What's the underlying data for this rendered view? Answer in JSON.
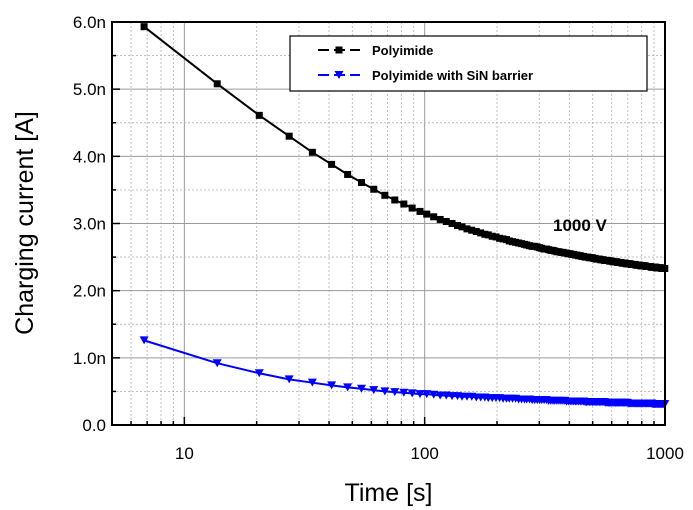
{
  "chart_data": {
    "type": "scatter",
    "title": "",
    "xlabel": "Time [s]",
    "ylabel": "Charging current [A]",
    "xscale": "log",
    "xlim": [
      5,
      1000
    ],
    "ylim": [
      0,
      6e-09
    ],
    "x_ticks": [
      {
        "value": 10,
        "label": "10"
      },
      {
        "value": 100,
        "label": "100"
      },
      {
        "value": 1000,
        "label": "1000"
      }
    ],
    "y_ticks": [
      {
        "value": 0,
        "label": "0.0"
      },
      {
        "value": 1e-09,
        "label": "1.0n"
      },
      {
        "value": 2e-09,
        "label": "2.0n"
      },
      {
        "value": 3e-09,
        "label": "3.0n"
      },
      {
        "value": 4e-09,
        "label": "4.0n"
      },
      {
        "value": 5e-09,
        "label": "5.0n"
      },
      {
        "value": 6e-09,
        "label": "6.0n"
      }
    ],
    "grid": true,
    "legend_position": "top-right",
    "annotation": "1000 V",
    "series": [
      {
        "name": "Polyimide",
        "color": "#000000",
        "marker": "square",
        "points": [
          [
            6.8,
            5.93e-09
          ],
          [
            13.7,
            5.08e-09
          ],
          [
            20.5,
            4.61e-09
          ],
          [
            27.3,
            4.3e-09
          ],
          [
            34.1,
            4.06e-09
          ],
          [
            41,
            3.88e-09
          ],
          [
            47.8,
            3.73e-09
          ],
          [
            54.6,
            3.61e-09
          ],
          [
            61.4,
            3.51e-09
          ],
          [
            68.3,
            3.42e-09
          ],
          [
            75.1,
            3.35e-09
          ],
          [
            81.9,
            3.29e-09
          ],
          [
            88.7,
            3.23e-09
          ],
          [
            95.6,
            3.18e-09
          ],
          [
            102,
            3.14e-09
          ],
          [
            109,
            3.1e-09
          ],
          [
            116,
            3.06e-09
          ],
          [
            123,
            3.03e-09
          ],
          [
            130,
            3e-09
          ],
          [
            137,
            2.97e-09
          ],
          [
            143,
            2.95e-09
          ],
          [
            150,
            2.92e-09
          ],
          [
            157,
            2.9e-09
          ],
          [
            164,
            2.88e-09
          ],
          [
            171,
            2.86e-09
          ],
          [
            178,
            2.84e-09
          ],
          [
            184,
            2.83e-09
          ],
          [
            191,
            2.81e-09
          ],
          [
            198,
            2.8e-09
          ],
          [
            205,
            2.78e-09
          ],
          [
            212,
            2.77e-09
          ],
          [
            219,
            2.76e-09
          ],
          [
            225,
            2.74e-09
          ],
          [
            232,
            2.73e-09
          ],
          [
            239,
            2.72e-09
          ],
          [
            246,
            2.71e-09
          ],
          [
            253,
            2.7e-09
          ],
          [
            260,
            2.69e-09
          ],
          [
            266,
            2.68e-09
          ],
          [
            273,
            2.67e-09
          ],
          [
            280,
            2.66e-09
          ],
          [
            287,
            2.66e-09
          ],
          [
            294,
            2.65e-09
          ],
          [
            301,
            2.64e-09
          ],
          [
            307,
            2.63e-09
          ],
          [
            314,
            2.62e-09
          ],
          [
            321,
            2.62e-09
          ],
          [
            328,
            2.61e-09
          ],
          [
            335,
            2.6e-09
          ],
          [
            342,
            2.6e-09
          ],
          [
            348,
            2.59e-09
          ],
          [
            355,
            2.58e-09
          ],
          [
            362,
            2.58e-09
          ],
          [
            369,
            2.57e-09
          ],
          [
            376,
            2.57e-09
          ],
          [
            383,
            2.56e-09
          ],
          [
            389,
            2.56e-09
          ],
          [
            396,
            2.55e-09
          ],
          [
            403,
            2.55e-09
          ],
          [
            410,
            2.54e-09
          ],
          [
            417,
            2.54e-09
          ],
          [
            424,
            2.53e-09
          ],
          [
            430,
            2.53e-09
          ],
          [
            437,
            2.52e-09
          ],
          [
            444,
            2.52e-09
          ],
          [
            451,
            2.51e-09
          ],
          [
            458,
            2.51e-09
          ],
          [
            465,
            2.5e-09
          ],
          [
            471,
            2.5e-09
          ],
          [
            478,
            2.5e-09
          ],
          [
            485,
            2.49e-09
          ],
          [
            492,
            2.49e-09
          ],
          [
            499,
            2.49e-09
          ],
          [
            506,
            2.48e-09
          ],
          [
            512,
            2.48e-09
          ],
          [
            519,
            2.47e-09
          ],
          [
            526,
            2.47e-09
          ],
          [
            533,
            2.47e-09
          ],
          [
            540,
            2.46e-09
          ],
          [
            547,
            2.46e-09
          ],
          [
            553,
            2.46e-09
          ],
          [
            560,
            2.45e-09
          ],
          [
            567,
            2.45e-09
          ],
          [
            574,
            2.45e-09
          ],
          [
            581,
            2.45e-09
          ],
          [
            588,
            2.44e-09
          ],
          [
            594,
            2.44e-09
          ],
          [
            601,
            2.44e-09
          ],
          [
            608,
            2.43e-09
          ],
          [
            615,
            2.43e-09
          ],
          [
            622,
            2.43e-09
          ],
          [
            629,
            2.43e-09
          ],
          [
            635,
            2.42e-09
          ],
          [
            642,
            2.42e-09
          ],
          [
            649,
            2.42e-09
          ],
          [
            656,
            2.42e-09
          ],
          [
            663,
            2.41e-09
          ],
          [
            670,
            2.41e-09
          ],
          [
            676,
            2.41e-09
          ],
          [
            683,
            2.41e-09
          ],
          [
            690,
            2.4e-09
          ],
          [
            697,
            2.4e-09
          ],
          [
            704,
            2.4e-09
          ],
          [
            711,
            2.4e-09
          ],
          [
            717,
            2.4e-09
          ],
          [
            724,
            2.39e-09
          ],
          [
            731,
            2.39e-09
          ],
          [
            738,
            2.39e-09
          ],
          [
            745,
            2.39e-09
          ],
          [
            752,
            2.39e-09
          ],
          [
            758,
            2.38e-09
          ],
          [
            765,
            2.38e-09
          ],
          [
            772,
            2.38e-09
          ],
          [
            779,
            2.38e-09
          ],
          [
            786,
            2.38e-09
          ],
          [
            793,
            2.37e-09
          ],
          [
            799,
            2.37e-09
          ],
          [
            806,
            2.37e-09
          ],
          [
            813,
            2.37e-09
          ],
          [
            820,
            2.37e-09
          ],
          [
            827,
            2.37e-09
          ],
          [
            834,
            2.36e-09
          ],
          [
            840,
            2.36e-09
          ],
          [
            847,
            2.36e-09
          ],
          [
            854,
            2.36e-09
          ],
          [
            861,
            2.36e-09
          ],
          [
            868,
            2.36e-09
          ],
          [
            875,
            2.35e-09
          ],
          [
            881,
            2.35e-09
          ],
          [
            888,
            2.35e-09
          ],
          [
            895,
            2.35e-09
          ],
          [
            902,
            2.35e-09
          ],
          [
            909,
            2.35e-09
          ],
          [
            916,
            2.35e-09
          ],
          [
            922,
            2.34e-09
          ],
          [
            929,
            2.34e-09
          ],
          [
            936,
            2.34e-09
          ],
          [
            943,
            2.34e-09
          ],
          [
            950,
            2.34e-09
          ],
          [
            957,
            2.34e-09
          ],
          [
            963,
            2.34e-09
          ],
          [
            970,
            2.33e-09
          ],
          [
            977,
            2.33e-09
          ],
          [
            984,
            2.33e-09
          ],
          [
            991,
            2.33e-09
          ],
          [
            998,
            2.33e-09
          ]
        ]
      },
      {
        "name": "Polyimide with SiN barrier",
        "color": "#0000ff",
        "marker": "triangle-down",
        "points": [
          [
            6.8,
            1.26e-09
          ],
          [
            13.7,
            9.2e-10
          ],
          [
            20.5,
            7.7e-10
          ],
          [
            27.3,
            6.8e-10
          ],
          [
            34.1,
            6.3e-10
          ],
          [
            41,
            5.9e-10
          ],
          [
            47.8,
            5.6e-10
          ],
          [
            54.6,
            5.4e-10
          ],
          [
            61.4,
            5.2e-10
          ],
          [
            68.3,
            5e-10
          ],
          [
            75.1,
            4.9e-10
          ],
          [
            81.9,
            4.8e-10
          ],
          [
            88.7,
            4.7e-10
          ],
          [
            95.6,
            4.6e-10
          ],
          [
            102,
            4.6e-10
          ],
          [
            109,
            4.5e-10
          ],
          [
            116,
            4.4e-10
          ],
          [
            123,
            4.4e-10
          ],
          [
            130,
            4.3e-10
          ],
          [
            137,
            4.3e-10
          ],
          [
            143,
            4.2e-10
          ],
          [
            150,
            4.2e-10
          ],
          [
            157,
            4.2e-10
          ],
          [
            164,
            4.1e-10
          ],
          [
            171,
            4.1e-10
          ],
          [
            178,
            4.1e-10
          ],
          [
            184,
            4e-10
          ],
          [
            191,
            4e-10
          ],
          [
            198,
            4e-10
          ],
          [
            205,
            4e-10
          ],
          [
            212,
            3.9e-10
          ],
          [
            219,
            3.9e-10
          ],
          [
            225,
            3.9e-10
          ],
          [
            232,
            3.9e-10
          ],
          [
            239,
            3.9e-10
          ],
          [
            246,
            3.8e-10
          ],
          [
            253,
            3.8e-10
          ],
          [
            260,
            3.8e-10
          ],
          [
            266,
            3.8e-10
          ],
          [
            273,
            3.8e-10
          ],
          [
            280,
            3.7e-10
          ],
          [
            287,
            3.7e-10
          ],
          [
            294,
            3.7e-10
          ],
          [
            301,
            3.7e-10
          ],
          [
            307,
            3.7e-10
          ],
          [
            314,
            3.7e-10
          ],
          [
            321,
            3.7e-10
          ],
          [
            328,
            3.6e-10
          ],
          [
            335,
            3.6e-10
          ],
          [
            342,
            3.6e-10
          ],
          [
            348,
            3.6e-10
          ],
          [
            355,
            3.6e-10
          ],
          [
            362,
            3.6e-10
          ],
          [
            369,
            3.6e-10
          ],
          [
            376,
            3.6e-10
          ],
          [
            383,
            3.6e-10
          ],
          [
            389,
            3.5e-10
          ],
          [
            396,
            3.5e-10
          ],
          [
            403,
            3.5e-10
          ],
          [
            410,
            3.5e-10
          ],
          [
            417,
            3.5e-10
          ],
          [
            424,
            3.5e-10
          ],
          [
            430,
            3.5e-10
          ],
          [
            437,
            3.5e-10
          ],
          [
            444,
            3.5e-10
          ],
          [
            451,
            3.5e-10
          ],
          [
            458,
            3.5e-10
          ],
          [
            465,
            3.4e-10
          ],
          [
            471,
            3.4e-10
          ],
          [
            478,
            3.4e-10
          ],
          [
            485,
            3.4e-10
          ],
          [
            492,
            3.4e-10
          ],
          [
            499,
            3.4e-10
          ],
          [
            506,
            3.4e-10
          ],
          [
            512,
            3.4e-10
          ],
          [
            519,
            3.4e-10
          ],
          [
            526,
            3.4e-10
          ],
          [
            533,
            3.4e-10
          ],
          [
            540,
            3.4e-10
          ],
          [
            547,
            3.4e-10
          ],
          [
            553,
            3.4e-10
          ],
          [
            560,
            3.4e-10
          ],
          [
            567,
            3.3e-10
          ],
          [
            574,
            3.3e-10
          ],
          [
            581,
            3.3e-10
          ],
          [
            588,
            3.3e-10
          ],
          [
            594,
            3.3e-10
          ],
          [
            601,
            3.3e-10
          ],
          [
            608,
            3.3e-10
          ],
          [
            615,
            3.3e-10
          ],
          [
            622,
            3.3e-10
          ],
          [
            629,
            3.3e-10
          ],
          [
            635,
            3.3e-10
          ],
          [
            642,
            3.3e-10
          ],
          [
            649,
            3.3e-10
          ],
          [
            656,
            3.3e-10
          ],
          [
            663,
            3.3e-10
          ],
          [
            670,
            3.3e-10
          ],
          [
            676,
            3.3e-10
          ],
          [
            683,
            3.3e-10
          ],
          [
            690,
            3.3e-10
          ],
          [
            697,
            3.3e-10
          ],
          [
            704,
            3.2e-10
          ],
          [
            711,
            3.2e-10
          ],
          [
            717,
            3.2e-10
          ],
          [
            724,
            3.2e-10
          ],
          [
            731,
            3.2e-10
          ],
          [
            738,
            3.2e-10
          ],
          [
            745,
            3.2e-10
          ],
          [
            752,
            3.2e-10
          ],
          [
            758,
            3.2e-10
          ],
          [
            765,
            3.2e-10
          ],
          [
            772,
            3.2e-10
          ],
          [
            779,
            3.2e-10
          ],
          [
            786,
            3.2e-10
          ],
          [
            793,
            3.2e-10
          ],
          [
            799,
            3.2e-10
          ],
          [
            806,
            3.2e-10
          ],
          [
            813,
            3.2e-10
          ],
          [
            820,
            3.2e-10
          ],
          [
            827,
            3.2e-10
          ],
          [
            834,
            3.2e-10
          ],
          [
            840,
            3.2e-10
          ],
          [
            847,
            3.2e-10
          ],
          [
            854,
            3.2e-10
          ],
          [
            861,
            3.2e-10
          ],
          [
            868,
            3.2e-10
          ],
          [
            875,
            3.2e-10
          ],
          [
            881,
            3.2e-10
          ],
          [
            888,
            3.1e-10
          ],
          [
            895,
            3.1e-10
          ],
          [
            902,
            3.1e-10
          ],
          [
            909,
            3.1e-10
          ],
          [
            916,
            3.1e-10
          ],
          [
            922,
            3.1e-10
          ],
          [
            929,
            3.1e-10
          ],
          [
            936,
            3.1e-10
          ],
          [
            943,
            3.1e-10
          ],
          [
            950,
            3.1e-10
          ],
          [
            957,
            3.1e-10
          ],
          [
            963,
            3.1e-10
          ],
          [
            970,
            3.1e-10
          ],
          [
            977,
            3.1e-10
          ],
          [
            984,
            3.1e-10
          ],
          [
            991,
            3.1e-10
          ],
          [
            998,
            3.1e-10
          ]
        ]
      }
    ]
  }
}
